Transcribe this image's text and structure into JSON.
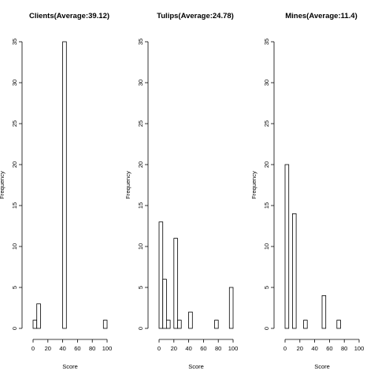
{
  "chart_data": [
    {
      "type": "bar",
      "title": "Clients(Average:39.12)",
      "xlabel": "Score",
      "ylabel": "Frequency",
      "bin_width": 5,
      "bin_start": 0,
      "values": [
        1,
        3,
        0,
        0,
        0,
        0,
        0,
        0,
        35,
        0,
        0,
        0,
        0,
        0,
        0,
        0,
        0,
        0,
        0,
        1
      ],
      "xlim": [
        0,
        100
      ],
      "ylim": [
        0,
        35
      ],
      "xticks": [
        0,
        20,
        40,
        60,
        80,
        100
      ],
      "yticks": [
        0,
        5,
        10,
        15,
        20,
        25,
        30,
        35
      ],
      "grid": false
    },
    {
      "type": "bar",
      "title": "Tulips(Average:24.78)",
      "xlabel": "Score",
      "ylabel": "Frequency",
      "bin_width": 5,
      "bin_start": 0,
      "values": [
        13,
        6,
        1,
        0,
        11,
        1,
        0,
        0,
        2,
        0,
        0,
        0,
        0,
        0,
        0,
        1,
        0,
        0,
        0,
        5
      ],
      "xlim": [
        0,
        100
      ],
      "ylim": [
        0,
        35
      ],
      "xticks": [
        0,
        20,
        40,
        60,
        80,
        100
      ],
      "yticks": [
        0,
        5,
        10,
        15,
        20,
        25,
        30,
        35
      ],
      "grid": false
    },
    {
      "type": "bar",
      "title": "Mines(Average:11.4)",
      "xlabel": "Score",
      "ylabel": "Frequency",
      "bin_width": 5,
      "bin_start": 0,
      "values": [
        20,
        0,
        14,
        0,
        0,
        1,
        0,
        0,
        0,
        0,
        4,
        0,
        0,
        0,
        1
      ],
      "xlim": [
        0,
        100
      ],
      "ylim": [
        0,
        35
      ],
      "xticks": [
        0,
        20,
        40,
        60,
        80,
        100
      ],
      "yticks": [
        0,
        5,
        10,
        15,
        20,
        25,
        30,
        35
      ],
      "grid": false
    }
  ]
}
